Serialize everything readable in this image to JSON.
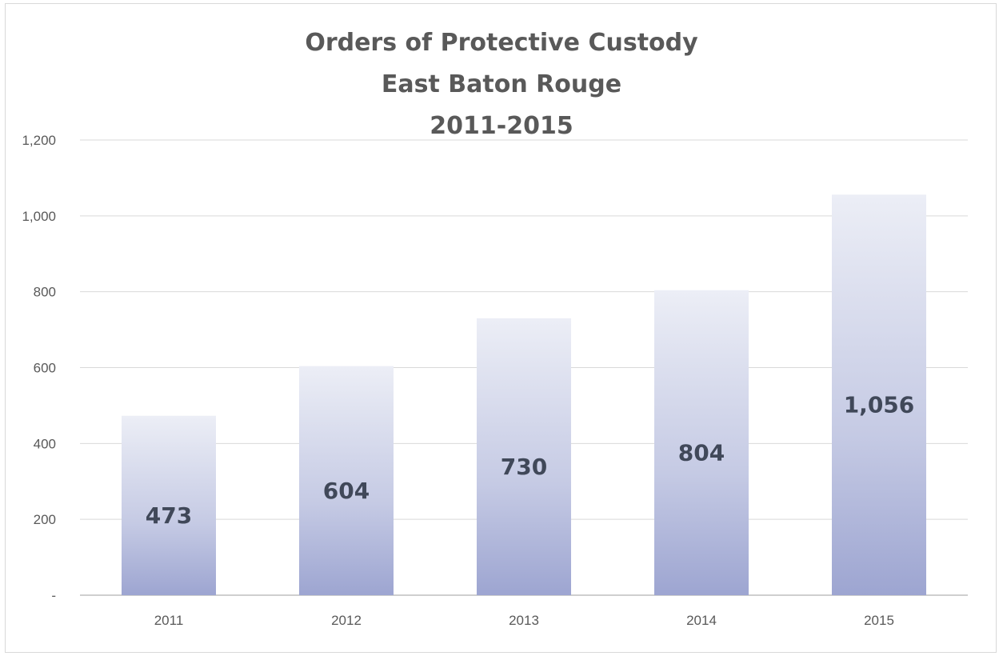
{
  "chart_data": {
    "type": "bar",
    "title": [
      "Orders of Protective Custody",
      "East Baton Rouge",
      "2011-2015"
    ],
    "categories": [
      "2011",
      "2012",
      "2013",
      "2014",
      "2015"
    ],
    "values": [
      473,
      604,
      730,
      804,
      1056
    ],
    "data_labels": [
      "473",
      "604",
      "730",
      "804",
      "1,056"
    ],
    "y_ticks": [
      0,
      200,
      400,
      600,
      800,
      1000,
      1200
    ],
    "y_tick_labels": [
      "-",
      "200",
      "400",
      "600",
      "800",
      "1,000",
      "1,200"
    ],
    "ylim": [
      0,
      1200
    ],
    "grid": true,
    "legend": "none",
    "colors": {
      "bar_top": "#e9ebf4",
      "bar_bottom": "#9ea6d2",
      "grid": "#d9d9d9",
      "axis": "#bfbfbf"
    }
  }
}
